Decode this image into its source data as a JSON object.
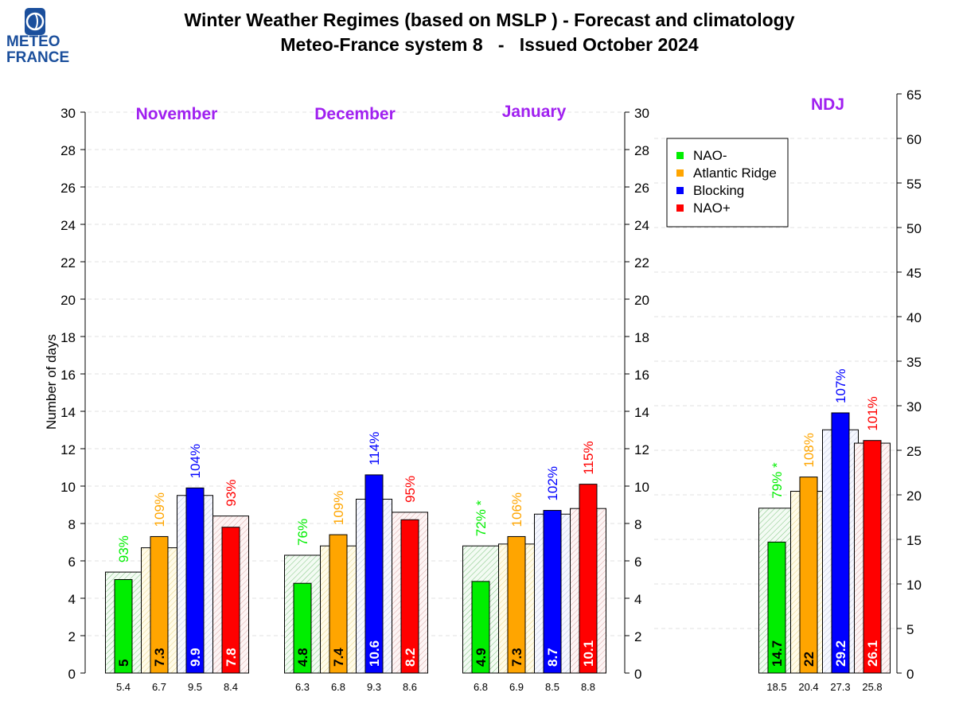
{
  "header": {
    "title_line1": "Winter Weather Regimes (based on MSLP )  -  Forecast and climatology",
    "title_line2": "Meteo-France system 8   -   Issued October 2024"
  },
  "logo": {
    "line1": "METEO",
    "line2": "FRANCE",
    "icon": "meteo-france-globe-icon"
  },
  "colors": {
    "nao_minus": "#00ee00",
    "atlantic_ridge": "#ffa500",
    "blocking": "#0000ff",
    "nao_plus": "#ff0000",
    "month_title": "#a020f0"
  },
  "chart_data": [
    {
      "type": "bar",
      "title": "November",
      "ylabel": "Number of days",
      "ylim": [
        0,
        30
      ],
      "yticks": [
        "0",
        "2",
        "4",
        "6",
        "8",
        "10",
        "12",
        "14",
        "16",
        "18",
        "20",
        "22",
        "24",
        "26",
        "28",
        "30"
      ],
      "categories": [
        "NAO-",
        "Atlantic Ridge",
        "Blocking",
        "NAO+"
      ],
      "series": [
        {
          "name": "forecast",
          "values": [
            5,
            7.3,
            9.9,
            7.8
          ],
          "labels": [
            "5",
            "7.3",
            "9.9",
            "7.8"
          ]
        },
        {
          "name": "climatology",
          "values": [
            5.4,
            6.7,
            9.5,
            8.4
          ],
          "labels": [
            "5.4",
            "6.7",
            "9.5",
            "8.4"
          ]
        }
      ],
      "percent_labels": [
        "93%",
        "109%",
        "104%",
        "93%"
      ]
    },
    {
      "type": "bar",
      "title": "December",
      "ylim": [
        0,
        30
      ],
      "categories": [
        "NAO-",
        "Atlantic Ridge",
        "Blocking",
        "NAO+"
      ],
      "series": [
        {
          "name": "forecast",
          "values": [
            4.8,
            7.4,
            10.6,
            8.2
          ],
          "labels": [
            "4.8",
            "7.4",
            "10.6",
            "8.2"
          ]
        },
        {
          "name": "climatology",
          "values": [
            6.3,
            6.8,
            9.3,
            8.6
          ],
          "labels": [
            "6.3",
            "6.8",
            "9.3",
            "8.6"
          ]
        }
      ],
      "percent_labels": [
        "76%",
        "109%",
        "114%",
        "95%"
      ]
    },
    {
      "type": "bar",
      "title": "January",
      "ylim": [
        0,
        30
      ],
      "yticks_right": [
        "0",
        "2",
        "4",
        "6",
        "8",
        "10",
        "12",
        "14",
        "16",
        "18",
        "20",
        "22",
        "24",
        "26",
        "28",
        "30"
      ],
      "categories": [
        "NAO-",
        "Atlantic Ridge",
        "Blocking",
        "NAO+"
      ],
      "series": [
        {
          "name": "forecast",
          "values": [
            4.9,
            7.3,
            8.7,
            10.1
          ],
          "labels": [
            "4.9",
            "7.3",
            "8.7",
            "10.1"
          ]
        },
        {
          "name": "climatology",
          "values": [
            6.8,
            6.9,
            8.5,
            8.8
          ],
          "labels": [
            "6.8",
            "6.9",
            "8.5",
            "8.8"
          ]
        }
      ],
      "percent_labels": [
        "72% *",
        "106%",
        "102%",
        "115%"
      ]
    },
    {
      "type": "bar",
      "title": "NDJ",
      "ylim": [
        0,
        65
      ],
      "yticks": [
        "0",
        "5",
        "10",
        "15",
        "20",
        "25",
        "30",
        "35",
        "40",
        "45",
        "50",
        "55",
        "60",
        "65"
      ],
      "categories": [
        "NAO-",
        "Atlantic Ridge",
        "Blocking",
        "NAO+"
      ],
      "series": [
        {
          "name": "forecast",
          "values": [
            14.7,
            22,
            29.2,
            26.1
          ],
          "labels": [
            "14.7",
            "22",
            "29.2",
            "26.1"
          ]
        },
        {
          "name": "climatology",
          "values": [
            18.5,
            20.4,
            27.3,
            25.8
          ],
          "labels": [
            "18.5",
            "20.4",
            "27.3",
            "25.8"
          ]
        }
      ],
      "percent_labels": [
        "79% *",
        "108%",
        "107%",
        "101%"
      ]
    }
  ],
  "legend": {
    "placement": "top-right",
    "entries": [
      "NAO-",
      "Atlantic Ridge",
      "Blocking",
      "NAO+"
    ]
  }
}
